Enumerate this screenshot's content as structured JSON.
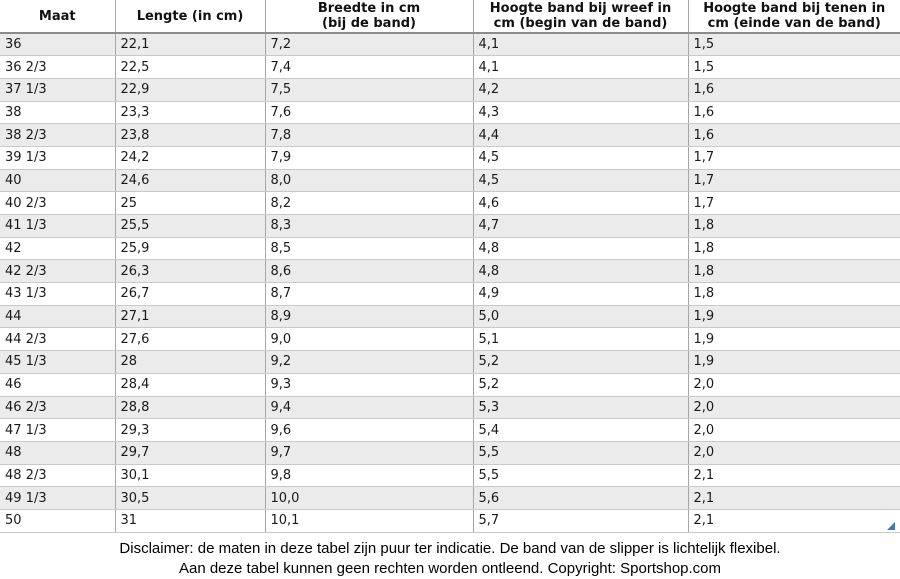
{
  "colors": {
    "stripe_row": "#ebebeb",
    "row_separator": "#c9c9c9",
    "column_separator": "#a6a6a6",
    "header_underline": "#8c8c8c",
    "corner_handle": "#4472c4"
  },
  "table": {
    "columns": [
      {
        "line1": "Maat",
        "line2": ""
      },
      {
        "line1": "Lengte (in cm)",
        "line2": ""
      },
      {
        "line1": "Breedte in cm",
        "line2": "(bij de band)"
      },
      {
        "line1": "Hoogte band bij wreef in",
        "line2": "cm (begin van de band)"
      },
      {
        "line1": "Hoogte band bij tenen in",
        "line2": "cm (einde van de band)"
      }
    ],
    "rows": [
      [
        "36",
        "22,1",
        "7,2",
        "4,1",
        "1,5"
      ],
      [
        "36 2/3",
        "22,5",
        "7,4",
        "4,1",
        "1,5"
      ],
      [
        "37 1/3",
        "22,9",
        "7,5",
        "4,2",
        "1,6"
      ],
      [
        "38",
        "23,3",
        "7,6",
        "4,3",
        "1,6"
      ],
      [
        "38 2/3",
        "23,8",
        "7,8",
        "4,4",
        "1,6"
      ],
      [
        "39 1/3",
        "24,2",
        "7,9",
        "4,5",
        "1,7"
      ],
      [
        "40",
        "24,6",
        "8,0",
        "4,5",
        "1,7"
      ],
      [
        "40 2/3",
        "25",
        "8,2",
        "4,6",
        "1,7"
      ],
      [
        "41 1/3",
        "25,5",
        "8,3",
        "4,7",
        "1,8"
      ],
      [
        "42",
        "25,9",
        "8,5",
        "4,8",
        "1,8"
      ],
      [
        "42 2/3",
        "26,3",
        "8,6",
        "4,8",
        "1,8"
      ],
      [
        "43 1/3",
        "26,7",
        "8,7",
        "4,9",
        "1,8"
      ],
      [
        "44",
        "27,1",
        "8,9",
        "5,0",
        "1,9"
      ],
      [
        "44 2/3",
        "27,6",
        "9,0",
        "5,1",
        "1,9"
      ],
      [
        "45 1/3",
        "28",
        "9,2",
        "5,2",
        "1,9"
      ],
      [
        "46",
        "28,4",
        "9,3",
        "5,2",
        "2,0"
      ],
      [
        "46 2/3",
        "28,8",
        "9,4",
        "5,3",
        "2,0"
      ],
      [
        "47 1/3",
        "29,3",
        "9,6",
        "5,4",
        "2,0"
      ],
      [
        "48",
        "29,7",
        "9,7",
        "5,5",
        "2,0"
      ],
      [
        "48 2/3",
        "30,1",
        "9,8",
        "5,5",
        "2,1"
      ],
      [
        "49 1/3",
        "30,5",
        "10,0",
        "5,6",
        "2,1"
      ],
      [
        "50",
        "31",
        "10,1",
        "5,7",
        "2,1"
      ]
    ]
  },
  "footer": {
    "line1": "Disclaimer: de maten in deze tabel zijn puur ter indicatie. De band van de slipper is lichtelijk flexibel.",
    "line2": "Aan deze tabel kunnen geen rechten worden ontleend. Copyright: Sportshop.com"
  }
}
